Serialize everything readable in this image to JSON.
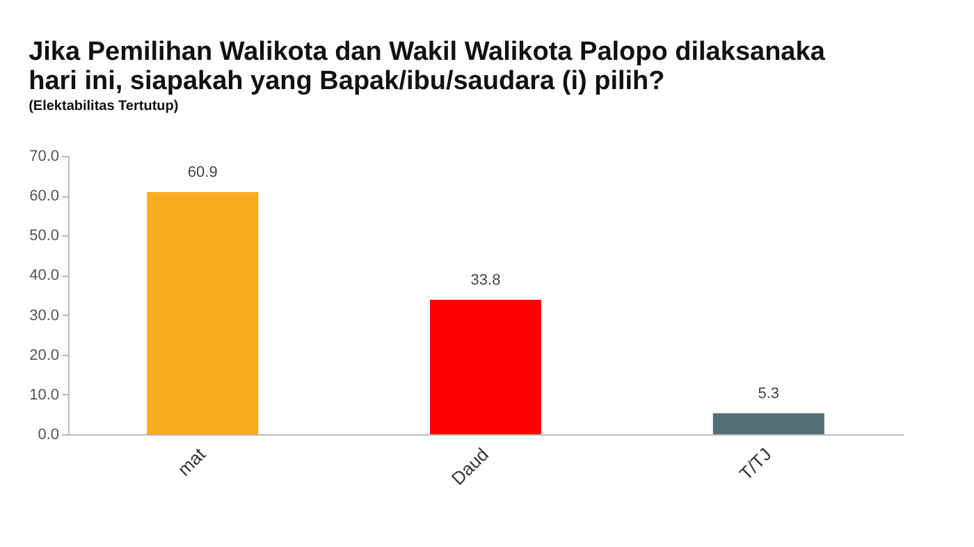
{
  "chart_data": {
    "type": "bar",
    "title": [
      "Jika Pemilihan Walikota dan Wakil Walikota Palopo dilaksanaka",
      "hari ini, siapakah yang Bapak/ibu/saudara (i) pilih?"
    ],
    "subtitle": "(Elektabilitas Tertutup)",
    "categories": [
      "mat",
      "Daud",
      "T/TJ"
    ],
    "values": [
      60.9,
      33.8,
      5.3
    ],
    "colors": [
      "#fbab20",
      "#fe0000",
      "#546e78"
    ],
    "ylim": [
      0,
      70
    ],
    "yticks": [
      {
        "value": 0,
        "label": "0.0"
      },
      {
        "value": 10,
        "label": "10.0"
      },
      {
        "value": 20,
        "label": "20.0"
      },
      {
        "value": 30,
        "label": "30.0"
      },
      {
        "value": 40,
        "label": "40.0"
      },
      {
        "value": 50,
        "label": "50.0"
      },
      {
        "value": 60,
        "label": "60.0"
      },
      {
        "value": 70,
        "label": "70.0"
      }
    ],
    "data_labels": true,
    "grid": false
  }
}
